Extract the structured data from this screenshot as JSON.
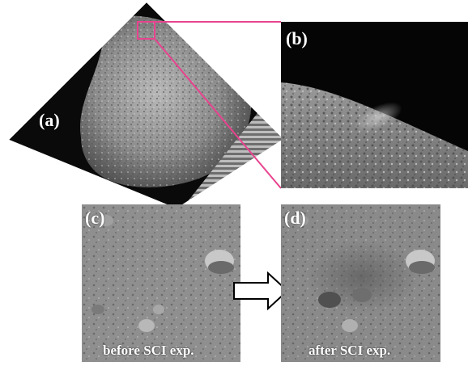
{
  "panels": {
    "a": {
      "label": "(a)"
    },
    "b": {
      "label": "(b)"
    },
    "c": {
      "label": "(c)",
      "caption": "before SCI exp."
    },
    "d": {
      "label": "(d)",
      "caption": "after SCI exp."
    }
  },
  "colors": {
    "zoom_box": "#e8438f",
    "arrow_fill": "#ffffff",
    "arrow_stroke": "#000000"
  }
}
